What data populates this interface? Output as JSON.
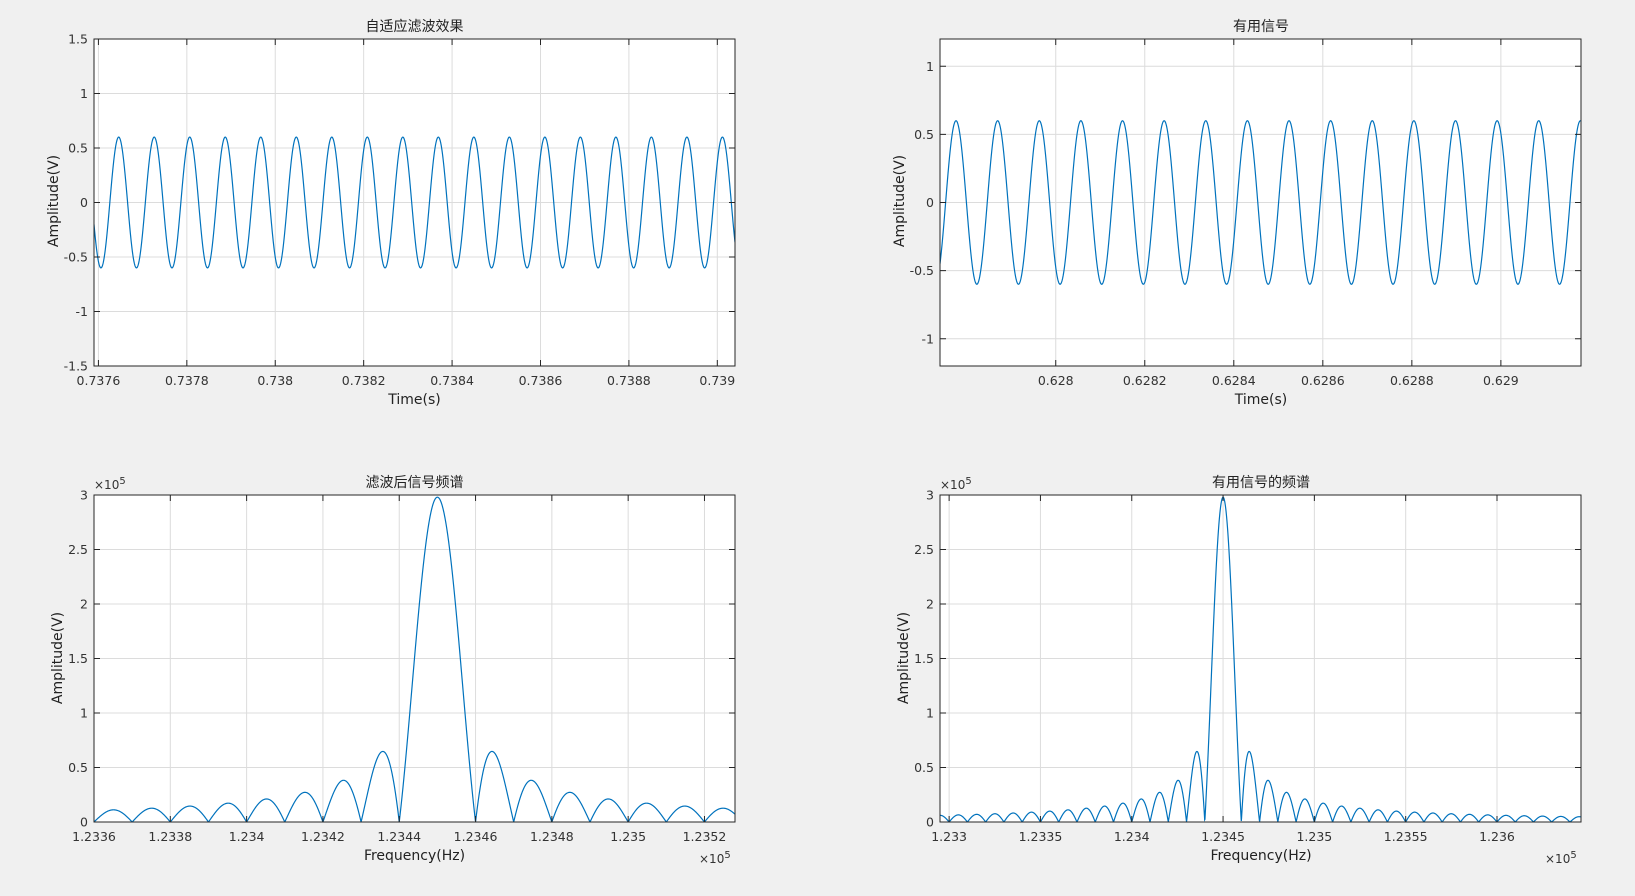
{
  "figure": {
    "background": "#f0f0f0",
    "axes_background": "#ffffff",
    "line_color": "#0072bd",
    "grid_color": "#dcdcdc"
  },
  "chart_data": [
    {
      "type": "line",
      "title": "自适应滤波效果",
      "xlabel": "Time(s)",
      "ylabel": "Amplitude(V)",
      "xlim": [
        0.73759,
        0.73904
      ],
      "ylim": [
        -1.5,
        1.5
      ],
      "xticks": [
        0.7376,
        0.7378,
        0.738,
        0.7382,
        0.7384,
        0.7386,
        0.7388,
        0.739
      ],
      "xtick_labels": [
        "0.7376",
        "0.7378",
        "0.738",
        "0.7382",
        "0.7384",
        "0.7386",
        "0.7388",
        "0.739"
      ],
      "yticks": [
        -1.5,
        -1,
        -0.5,
        0,
        0.5,
        1,
        1.5
      ],
      "ytick_labels": [
        "-1.5",
        "-1",
        "-0.5",
        "0",
        "0.5",
        "1",
        "1.5"
      ],
      "grid": true,
      "series": [
        {
          "kind": "sine",
          "amplitude": 0.6,
          "cycles_visible": 18.05,
          "start_value": -0.2,
          "start_direction": "down"
        }
      ]
    },
    {
      "type": "line",
      "title": "有用信号",
      "xlabel": "Time(s)",
      "ylabel": "Amplitude(V)",
      "xlim": [
        0.62774,
        0.62918
      ],
      "ylim": [
        -1.2,
        1.2
      ],
      "xticks": [
        0.628,
        0.6282,
        0.6284,
        0.6286,
        0.6288,
        0.629
      ],
      "xtick_labels": [
        "0.628",
        "0.6282",
        "0.6284",
        "0.6286",
        "0.6288",
        "0.629"
      ],
      "yticks": [
        -1,
        -0.5,
        0,
        0.5,
        1
      ],
      "ytick_labels": [
        "-1",
        "-0.5",
        "0",
        "0.5",
        "1"
      ],
      "grid": true,
      "series": [
        {
          "kind": "sine",
          "amplitude": 0.6,
          "cycles_visible": 15.4,
          "start_value": -0.45,
          "start_direction": "up"
        }
      ]
    },
    {
      "type": "line",
      "title": "滤波后信号频谱",
      "xlabel": "Frequency(Hz)",
      "ylabel": "Amplitude(V)",
      "x_exponent": "×10^5",
      "y_exponent": "×10^5",
      "xlim": [
        1.2336,
        1.23528
      ],
      "ylim": [
        0,
        3
      ],
      "xticks": [
        1.2336,
        1.2338,
        1.234,
        1.2342,
        1.2344,
        1.2346,
        1.2348,
        1.235,
        1.2352
      ],
      "xtick_labels": [
        "1.2336",
        "1.2338",
        "1.234",
        "1.2342",
        "1.2344",
        "1.2346",
        "1.2348",
        "1.235",
        "1.2352"
      ],
      "yticks": [
        0,
        0.5,
        1,
        1.5,
        2,
        2.5,
        3
      ],
      "ytick_labels": [
        "0",
        "0.5",
        "1",
        "1.5",
        "2",
        "2.5",
        "3"
      ],
      "grid": true,
      "series": [
        {
          "kind": "sinc",
          "center": 1.2345,
          "peak": 2.98,
          "null_width": 0.0001
        }
      ]
    },
    {
      "type": "line",
      "title": "有用信号的频谱",
      "xlabel": "Frequency(Hz)",
      "ylabel": "Amplitude(V)",
      "x_exponent": "×10^5",
      "y_exponent": "×10^5",
      "xlim": [
        1.23295,
        1.23646
      ],
      "ylim": [
        0,
        3
      ],
      "xticks": [
        1.233,
        1.2335,
        1.234,
        1.2345,
        1.235,
        1.2355,
        1.236
      ],
      "xtick_labels": [
        "1.233",
        "1.2335",
        "1.234",
        "1.2345",
        "1.235",
        "1.2355",
        "1.236"
      ],
      "yticks": [
        0,
        0.5,
        1,
        1.5,
        2,
        2.5,
        3
      ],
      "ytick_labels": [
        "0",
        "0.5",
        "1",
        "1.5",
        "2",
        "2.5",
        "3"
      ],
      "grid": true,
      "series": [
        {
          "kind": "sinc",
          "center": 1.2345,
          "peak": 2.98,
          "null_width": 0.0001
        }
      ]
    }
  ]
}
